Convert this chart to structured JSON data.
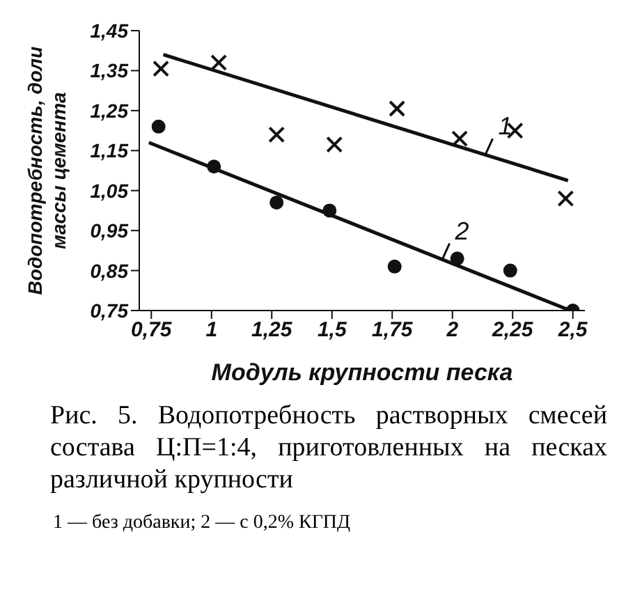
{
  "chart_data": {
    "type": "scatter",
    "title": "Рис. 5. Водопотребность растворных смесей состава Ц:П=1:4, приготовленных на песках различной крупности",
    "xlabel": "Модуль крупности песка",
    "ylabel": "Водопотребность, доли массы цемента",
    "xlim": [
      0.7,
      2.55
    ],
    "ylim": [
      0.75,
      1.45
    ],
    "xticks": [
      {
        "value": 0.75,
        "label": "0,75"
      },
      {
        "value": 1,
        "label": "1"
      },
      {
        "value": 1.25,
        "label": "1,25"
      },
      {
        "value": 1.5,
        "label": "1,5"
      },
      {
        "value": 1.75,
        "label": "1,75"
      },
      {
        "value": 2,
        "label": "2"
      },
      {
        "value": 2.25,
        "label": "2,25"
      },
      {
        "value": 2.5,
        "label": "2,5"
      }
    ],
    "yticks": [
      {
        "value": 0.75,
        "label": "0,75"
      },
      {
        "value": 0.85,
        "label": "0,85"
      },
      {
        "value": 0.95,
        "label": "0,95"
      },
      {
        "value": 1.05,
        "label": "1,05"
      },
      {
        "value": 1.15,
        "label": "1,15"
      },
      {
        "value": 1.25,
        "label": "1,25"
      },
      {
        "value": 1.35,
        "label": "1,35"
      },
      {
        "value": 1.45,
        "label": "1,45"
      }
    ],
    "grid": false,
    "legend": false,
    "series": [
      {
        "marker": "cross",
        "color": "#111111",
        "x": [
          0.79,
          1.03,
          1.27,
          1.51,
          1.77,
          2.03,
          2.26,
          2.47
        ],
        "values": [
          1.355,
          1.37,
          1.19,
          1.165,
          1.255,
          1.18,
          1.2,
          1.03
        ]
      },
      {
        "marker": "circle",
        "color": "#111111",
        "x": [
          0.78,
          1.01,
          1.27,
          1.49,
          1.76,
          2.02,
          2.24,
          2.5
        ],
        "values": [
          1.21,
          1.11,
          1.02,
          1.0,
          0.86,
          0.88,
          0.85,
          0.75
        ]
      },
      {
        "type": "line",
        "name": "1",
        "marker": "none",
        "line_style": "solid",
        "color": "#111111",
        "x": [
          0.8,
          2.48
        ],
        "values": [
          1.39,
          1.075
        ]
      },
      {
        "type": "line",
        "name": "2",
        "marker": "none",
        "line_style": "solid",
        "color": "#111111",
        "x": [
          0.74,
          2.49
        ],
        "values": [
          1.17,
          0.75
        ]
      }
    ],
    "annotations": [
      "1 — без добавки; 2 — с 0,2% КГПД"
    ]
  }
}
